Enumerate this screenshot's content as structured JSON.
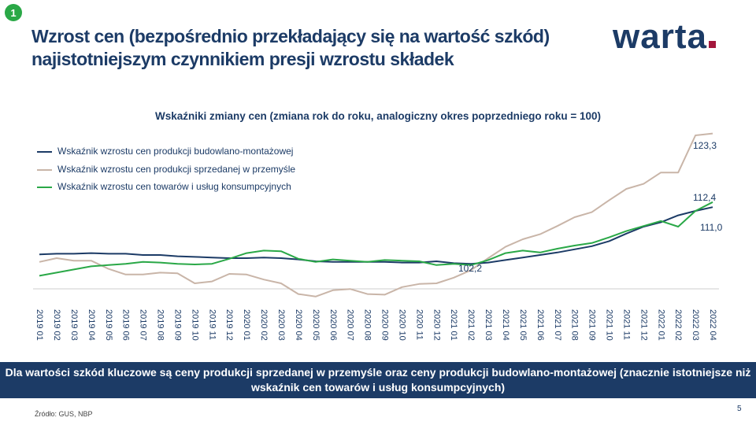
{
  "slide": {
    "badge": "1",
    "title": "Wzrost cen (bezpośrednio przekładający się na wartość szkód) najistotniejszym czynnikiem presji wzrostu składek",
    "logo": "warta",
    "banner": "Dla wartości szkód kluczowe są ceny produkcji sprzedanej w przemyśle oraz ceny produkcji budowlano-montażowej (znacznie istotniejsze niż wskaźnik cen towarów i usług konsumpcyjnych)",
    "source": "Źródło: GUS, NBP",
    "page_number": "5"
  },
  "chart_data": {
    "type": "line",
    "title": "Wskaźniki zmiany cen (zmiana rok do roku, analogiczny okres poprzedniego roku = 100)",
    "legend_position": "top-left",
    "grid": false,
    "ylim": [
      96,
      123.5
    ],
    "x": [
      "2019 01",
      "2019 02",
      "2019 03",
      "2019 04",
      "2019 05",
      "2019 06",
      "2019 07",
      "2019 08",
      "2019 09",
      "2019 10",
      "2019 11",
      "2019 12",
      "2020 01",
      "2020 02",
      "2020 03",
      "2020 04",
      "2020 05",
      "2020 06",
      "2020 07",
      "2020 08",
      "2020 09",
      "2020 10",
      "2020 11",
      "2020 12",
      "2021 01",
      "2021 02",
      "2021 03",
      "2021 04",
      "2021 05",
      "2021 06",
      "2021 07",
      "2021 08",
      "2021 09",
      "2021 10",
      "2021 11",
      "2021 12",
      "2022 01",
      "2022 02",
      "2022 03",
      "2022 04"
    ],
    "series": [
      {
        "name": "Wskaźnik wzrostu cen produkcji budowlano-montażowej",
        "color": "#1c3b66",
        "values": [
          104.1,
          104.2,
          104.2,
          104.3,
          104.2,
          104.2,
          104.0,
          104.0,
          103.8,
          103.7,
          103.6,
          103.5,
          103.5,
          103.6,
          103.5,
          103.3,
          103.0,
          102.9,
          102.9,
          102.9,
          102.9,
          102.8,
          102.8,
          103.0,
          102.7,
          102.6,
          102.8,
          103.2,
          103.6,
          104.0,
          104.4,
          104.9,
          105.4,
          106.2,
          107.4,
          108.5,
          109.2,
          110.3,
          111.0,
          111.6
        ]
      },
      {
        "name": "Wskaźnik wzrostu cen produkcji sprzedanej w przemyśle",
        "color": "#c9b5a8",
        "values": [
          102.9,
          103.5,
          103.1,
          103.1,
          101.8,
          100.9,
          100.9,
          101.2,
          101.1,
          99.5,
          99.8,
          101.0,
          100.9,
          100.1,
          99.5,
          97.8,
          97.4,
          98.4,
          98.6,
          97.8,
          97.7,
          98.9,
          99.4,
          99.5,
          100.4,
          101.6,
          103.5,
          105.3,
          106.5,
          107.3,
          108.6,
          110.0,
          110.8,
          112.7,
          114.5,
          115.3,
          117.1,
          117.1,
          123.0,
          123.3
        ]
      },
      {
        "name": "Wskaźnik wzrostu cen towarów i usług konsumpcyjnych",
        "color": "#2aa847",
        "values": [
          100.7,
          101.2,
          101.7,
          102.2,
          102.4,
          102.6,
          102.9,
          102.8,
          102.6,
          102.5,
          102.6,
          103.4,
          104.3,
          104.7,
          104.6,
          103.4,
          102.9,
          103.3,
          103.1,
          102.9,
          103.2,
          103.1,
          103.0,
          102.4,
          102.6,
          102.4,
          103.2,
          104.3,
          104.7,
          104.4,
          105.0,
          105.5,
          105.9,
          106.8,
          107.8,
          108.6,
          109.4,
          108.5,
          111.0,
          112.4
        ]
      }
    ],
    "annotations": [
      "102,2",
      "123,3",
      "112,4",
      "111,0"
    ]
  }
}
